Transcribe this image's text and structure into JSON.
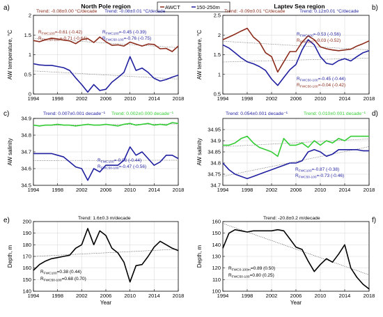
{
  "legend": {
    "items": [
      {
        "label": "AWCT",
        "color": "#8B2A1A"
      },
      {
        "label": "150-250m",
        "color": "#1F1FA0"
      }
    ]
  },
  "colors": {
    "red": "#8B2A1A",
    "blue": "#1F1FA0",
    "green": "#33CC33",
    "black": "#000000"
  },
  "chart_data": [
    {
      "id": "a",
      "type": "line",
      "panel_letter": "a)",
      "title": "North Pole region",
      "xlabel": "",
      "ylabel": "AW temperature, °C",
      "xlim": [
        1994,
        2018
      ],
      "ylim": [
        0,
        2
      ],
      "xticks": [
        "1994",
        "1998",
        "2002",
        "2006",
        "2010",
        "2014",
        "2018"
      ],
      "yticks": [
        "0",
        "0.5",
        "1",
        "1.5",
        "2"
      ],
      "trends": [
        {
          "text": "Trend: -0.08±0.00 °C/decade",
          "color": "#8B2A1A"
        },
        {
          "text": "Trend: -0.08±0.01 °C/decade",
          "color": "#1F1FA0"
        }
      ],
      "annotations": [
        {
          "text": "R_FWC100=-0.61 (-0.42)",
          "color": "#8B2A1A"
        },
        {
          "text": "R_FWC50-100=-0.71 (-0.64)",
          "color": "#8B2A1A"
        },
        {
          "text": "R_FWC100=-0.45 (-0.39)",
          "color": "#1F1FA0"
        },
        {
          "text": "R_FWC50-100=-0.76 (-0.75)",
          "color": "#1F1FA0"
        }
      ],
      "series": [
        {
          "name": "AWCT",
          "color": "#8B2A1A",
          "x": [
            1994,
            1995,
            1996,
            1997,
            1998,
            1999,
            2000,
            2001,
            2002,
            2003,
            2004,
            2005,
            2006,
            2007,
            2008,
            2009,
            2010,
            2011,
            2012,
            2013,
            2014,
            2015,
            2016,
            2017,
            2018
          ],
          "values": [
            1.36,
            1.33,
            1.38,
            1.42,
            1.4,
            1.37,
            1.35,
            1.28,
            1.38,
            1.41,
            1.31,
            1.45,
            1.33,
            1.24,
            1.25,
            1.22,
            1.32,
            1.27,
            1.22,
            1.27,
            1.26,
            1.15,
            1.16,
            1.08,
            1.22
          ]
        },
        {
          "name": "150-250m",
          "color": "#1F1FA0",
          "x": [
            1994,
            1995,
            1996,
            1997,
            1998,
            1999,
            2000,
            2001,
            2002,
            2003,
            2004,
            2005,
            2006,
            2007,
            2008,
            2009,
            2010,
            2011,
            2012,
            2013,
            2014,
            2015,
            2016,
            2017,
            2018
          ],
          "values": [
            0.77,
            0.74,
            0.73,
            0.73,
            0.7,
            0.67,
            0.6,
            0.41,
            0.24,
            0.05,
            0.24,
            0.09,
            0.12,
            0.3,
            0.42,
            0.55,
            0.95,
            0.6,
            0.66,
            0.55,
            0.4,
            0.33,
            0.37,
            0.43,
            0.48
          ]
        }
      ]
    },
    {
      "id": "b",
      "type": "line",
      "panel_letter": "b)",
      "title": "Laptev Sea region",
      "xlabel": "",
      "ylabel": "AW temperature, °C",
      "xlim": [
        1994,
        2018
      ],
      "ylim": [
        0.5,
        2.5
      ],
      "xticks": [
        "1994",
        "1998",
        "2002",
        "2006",
        "2010",
        "2014",
        "2018"
      ],
      "yticks": [
        "0.5",
        "1",
        "1.5",
        "2",
        "2.5"
      ],
      "trends": [
        {
          "text": "Trend: -0.09±0.01 °C/decade",
          "color": "#8B2A1A"
        },
        {
          "text": "Trend: 0.12±0.01 °C/decade",
          "color": "#1F1FA0"
        }
      ],
      "annotations": [
        {
          "text": "R_FWC100=-0.53 (-0.56)",
          "color": "#1F1FA0"
        },
        {
          "text": "R_FWC100=-0.03 (-0.52)",
          "color": "#8B2A1A"
        },
        {
          "text": "R_FWC50-100=-0.45 (-0.44)",
          "color": "#1F1FA0"
        },
        {
          "text": "R_FWC50-100=-0.04 (-0.42)",
          "color": "#8B2A1A"
        }
      ],
      "series": [
        {
          "name": "AWCT",
          "color": "#8B2A1A",
          "x": [
            1994,
            1995,
            1996,
            1997,
            1998,
            1999,
            2000,
            2001,
            2002,
            2003,
            2004,
            2005,
            2006,
            2007,
            2008,
            2009,
            2010,
            2011,
            2012,
            2013,
            2014,
            2015,
            2016,
            2017,
            2018
          ],
          "values": [
            1.88,
            1.95,
            2.02,
            2.1,
            2.17,
            1.95,
            1.82,
            1.55,
            1.45,
            1.06,
            1.32,
            1.58,
            1.58,
            1.82,
            1.98,
            1.88,
            1.7,
            1.65,
            1.62,
            1.6,
            1.62,
            1.64,
            1.72,
            1.78,
            1.85
          ]
        },
        {
          "name": "150-250m",
          "color": "#1F1FA0",
          "x": [
            1994,
            1995,
            1996,
            1997,
            1998,
            1999,
            2000,
            2001,
            2002,
            2003,
            2004,
            2005,
            2006,
            2007,
            2008,
            2009,
            2010,
            2011,
            2012,
            2013,
            2014,
            2015,
            2016,
            2017,
            2018
          ],
          "values": [
            1.75,
            1.67,
            1.55,
            1.42,
            1.32,
            1.27,
            1.2,
            1.1,
            0.88,
            0.72,
            0.92,
            1.12,
            1.25,
            1.62,
            1.88,
            1.75,
            1.45,
            1.28,
            1.25,
            1.35,
            1.4,
            1.34,
            1.45,
            1.55,
            1.6
          ]
        }
      ]
    },
    {
      "id": "c",
      "type": "line",
      "panel_letter": "c)",
      "title": "",
      "xlabel": "",
      "ylabel": "AW salinity",
      "xlim": [
        1994,
        2018
      ],
      "ylim": [
        34.5,
        34.9
      ],
      "xticks": [
        "1994",
        "1998",
        "2002",
        "2006",
        "2010",
        "2014",
        "2018"
      ],
      "yticks": [
        "34.5",
        "34.6",
        "34.7",
        "34.8",
        "34.9"
      ],
      "trends": [
        {
          "text": "Trend: 0.007±0.001 decade⁻¹",
          "color": "#1F1FA0"
        },
        {
          "text": "Trend: 0.002±0.000 decade⁻¹",
          "color": "#33CC33"
        }
      ],
      "annotations": [
        {
          "text": "R_FWC100=-0.08 (-0.44)",
          "color": "#1F1FA0"
        },
        {
          "text": "R_FWC50-100=-0.47 (-0.56)",
          "color": "#1F1FA0"
        }
      ],
      "series": [
        {
          "name": "",
          "color": "#33CC33",
          "x": [
            1994,
            1995,
            1996,
            1997,
            1998,
            1999,
            2000,
            2001,
            2002,
            2003,
            2004,
            2005,
            2006,
            2007,
            2008,
            2009,
            2010,
            2011,
            2012,
            2013,
            2014,
            2015,
            2016,
            2017,
            2018
          ],
          "values": [
            34.86,
            34.855,
            34.86,
            34.86,
            34.865,
            34.86,
            34.86,
            34.855,
            34.86,
            34.865,
            34.86,
            34.86,
            34.865,
            34.86,
            34.855,
            34.865,
            34.87,
            34.86,
            34.865,
            34.87,
            34.86,
            34.865,
            34.86,
            34.875,
            34.87
          ]
        },
        {
          "name": "",
          "color": "#1F1FA0",
          "x": [
            1994,
            1995,
            1996,
            1997,
            1998,
            1999,
            2000,
            2001,
            2002,
            2003,
            2004,
            2005,
            2006,
            2007,
            2008,
            2009,
            2010,
            2011,
            2012,
            2013,
            2014,
            2015,
            2016,
            2017,
            2018
          ],
          "values": [
            34.69,
            34.69,
            34.69,
            34.69,
            34.68,
            34.67,
            34.64,
            34.61,
            34.6,
            34.53,
            34.6,
            34.58,
            34.62,
            34.62,
            34.62,
            34.65,
            34.73,
            34.68,
            34.7,
            34.66,
            34.62,
            34.64,
            34.68,
            34.68,
            34.66
          ]
        }
      ]
    },
    {
      "id": "d",
      "type": "line",
      "panel_letter": "d)",
      "title": "",
      "xlabel": "",
      "ylabel": "AW salinity",
      "xlim": [
        1994,
        2018
      ],
      "ylim": [
        34.7,
        35.0
      ],
      "xticks": [
        "1994",
        "1998",
        "2002",
        "2006",
        "2010",
        "2014",
        "2018"
      ],
      "yticks": [
        "34.7",
        "34.75",
        "34.8",
        "34.85",
        "34.9",
        "34.95"
      ],
      "trends": [
        {
          "text": "Trend: 0.054±0.001 decade⁻¹",
          "color": "#1F1FA0"
        },
        {
          "text": "Trend: 0.010±0.001 decade⁻¹",
          "color": "#33CC33"
        }
      ],
      "annotations": [
        {
          "text": "R_FWC100=-0.87 (-0.38)",
          "color": "#1F1FA0"
        },
        {
          "text": "R_FWC50-100=-0.73 (-0.46)",
          "color": "#1F1FA0"
        }
      ],
      "series": [
        {
          "name": "",
          "color": "#33CC33",
          "x": [
            1994,
            1995,
            1996,
            1997,
            1998,
            1999,
            2000,
            2001,
            2002,
            2003,
            2004,
            2005,
            2006,
            2007,
            2008,
            2009,
            2010,
            2011,
            2012,
            2013,
            2014,
            2015,
            2016,
            2017,
            2018
          ],
          "values": [
            34.88,
            34.88,
            34.89,
            34.91,
            34.92,
            34.89,
            34.87,
            34.86,
            34.85,
            34.83,
            34.91,
            34.88,
            34.88,
            34.89,
            34.87,
            34.9,
            34.88,
            34.9,
            34.89,
            34.91,
            34.9,
            34.92,
            34.92,
            34.92,
            34.92
          ]
        },
        {
          "name": "",
          "color": "#1F1FA0",
          "x": [
            1994,
            1995,
            1996,
            1997,
            1998,
            1999,
            2000,
            2001,
            2002,
            2003,
            2004,
            2005,
            2006,
            2007,
            2008,
            2009,
            2010,
            2011,
            2012,
            2013,
            2014,
            2015,
            2016,
            2017,
            2018
          ],
          "values": [
            34.8,
            34.77,
            34.75,
            34.74,
            34.73,
            34.74,
            34.75,
            34.76,
            34.77,
            34.78,
            34.79,
            34.8,
            34.8,
            34.81,
            34.85,
            34.86,
            34.85,
            34.83,
            34.84,
            34.86,
            34.86,
            34.86,
            34.86,
            34.855,
            34.855
          ]
        }
      ]
    },
    {
      "id": "e",
      "type": "line",
      "panel_letter": "e)",
      "title": "",
      "xlabel": "Year",
      "ylabel": "Depth, m",
      "xlim": [
        1994,
        2018
      ],
      "ylim": [
        140,
        200
      ],
      "xticks": [
        "1994",
        "1998",
        "2002",
        "2006",
        "2010",
        "2014",
        "2018"
      ],
      "yticks": [
        "140",
        "150",
        "160",
        "170",
        "180",
        "190",
        "200"
      ],
      "trends": [
        {
          "text": "Trend: 1.6±0.3 m/decade",
          "color": "#000000"
        }
      ],
      "annotations": [
        {
          "text": "R_FWC100=0.38 (0.44)",
          "color": "#000000"
        },
        {
          "text": "R_FWC50-100=0.68 (0.70)",
          "color": "#000000"
        }
      ],
      "series": [
        {
          "name": "",
          "color": "#000000",
          "x": [
            1994,
            1995,
            1996,
            1997,
            1998,
            1999,
            2000,
            2001,
            2002,
            2003,
            2004,
            2005,
            2006,
            2007,
            2008,
            2009,
            2010,
            2011,
            2012,
            2013,
            2014,
            2015,
            2016,
            2017,
            2018
          ],
          "values": [
            158,
            163,
            166,
            168,
            169,
            170,
            171,
            177,
            180,
            194,
            180,
            192,
            188,
            177,
            173,
            165,
            148,
            162,
            163,
            170,
            178,
            183,
            180,
            177,
            175
          ]
        }
      ]
    },
    {
      "id": "f",
      "type": "line",
      "panel_letter": "f)",
      "title": "",
      "xlabel": "Year",
      "ylabel": "Depth, m",
      "xlim": [
        1994,
        2018
      ],
      "ylim": [
        100,
        160
      ],
      "xticks": [
        "1994",
        "1998",
        "2002",
        "2006",
        "2010",
        "2014",
        "2018"
      ],
      "yticks": [
        "100",
        "110",
        "120",
        "130",
        "140",
        "150",
        "160"
      ],
      "trends": [
        {
          "text": "Trend: -20.8±0.2 m/decade",
          "color": "#000000"
        }
      ],
      "annotations": [
        {
          "text": "R_FWC0-100m=0.89 (0.50)",
          "color": "#000000"
        },
        {
          "text": "R_FWC50-100=0.80 (0.25)",
          "color": "#000000"
        }
      ],
      "series": [
        {
          "name": "",
          "color": "#000000",
          "x": [
            1994,
            1995,
            1996,
            1997,
            1998,
            1999,
            2000,
            2001,
            2002,
            2003,
            2004,
            2005,
            2006,
            2007,
            2008,
            2009,
            2010,
            2011,
            2012,
            2013,
            2014,
            2015,
            2016,
            2017,
            2018
          ],
          "values": [
            137,
            150,
            153,
            152,
            151,
            152,
            152,
            152,
            152,
            153,
            152,
            145,
            138,
            136,
            126,
            117,
            123,
            128,
            125,
            132,
            140,
            120,
            112,
            106,
            102
          ]
        }
      ]
    }
  ]
}
